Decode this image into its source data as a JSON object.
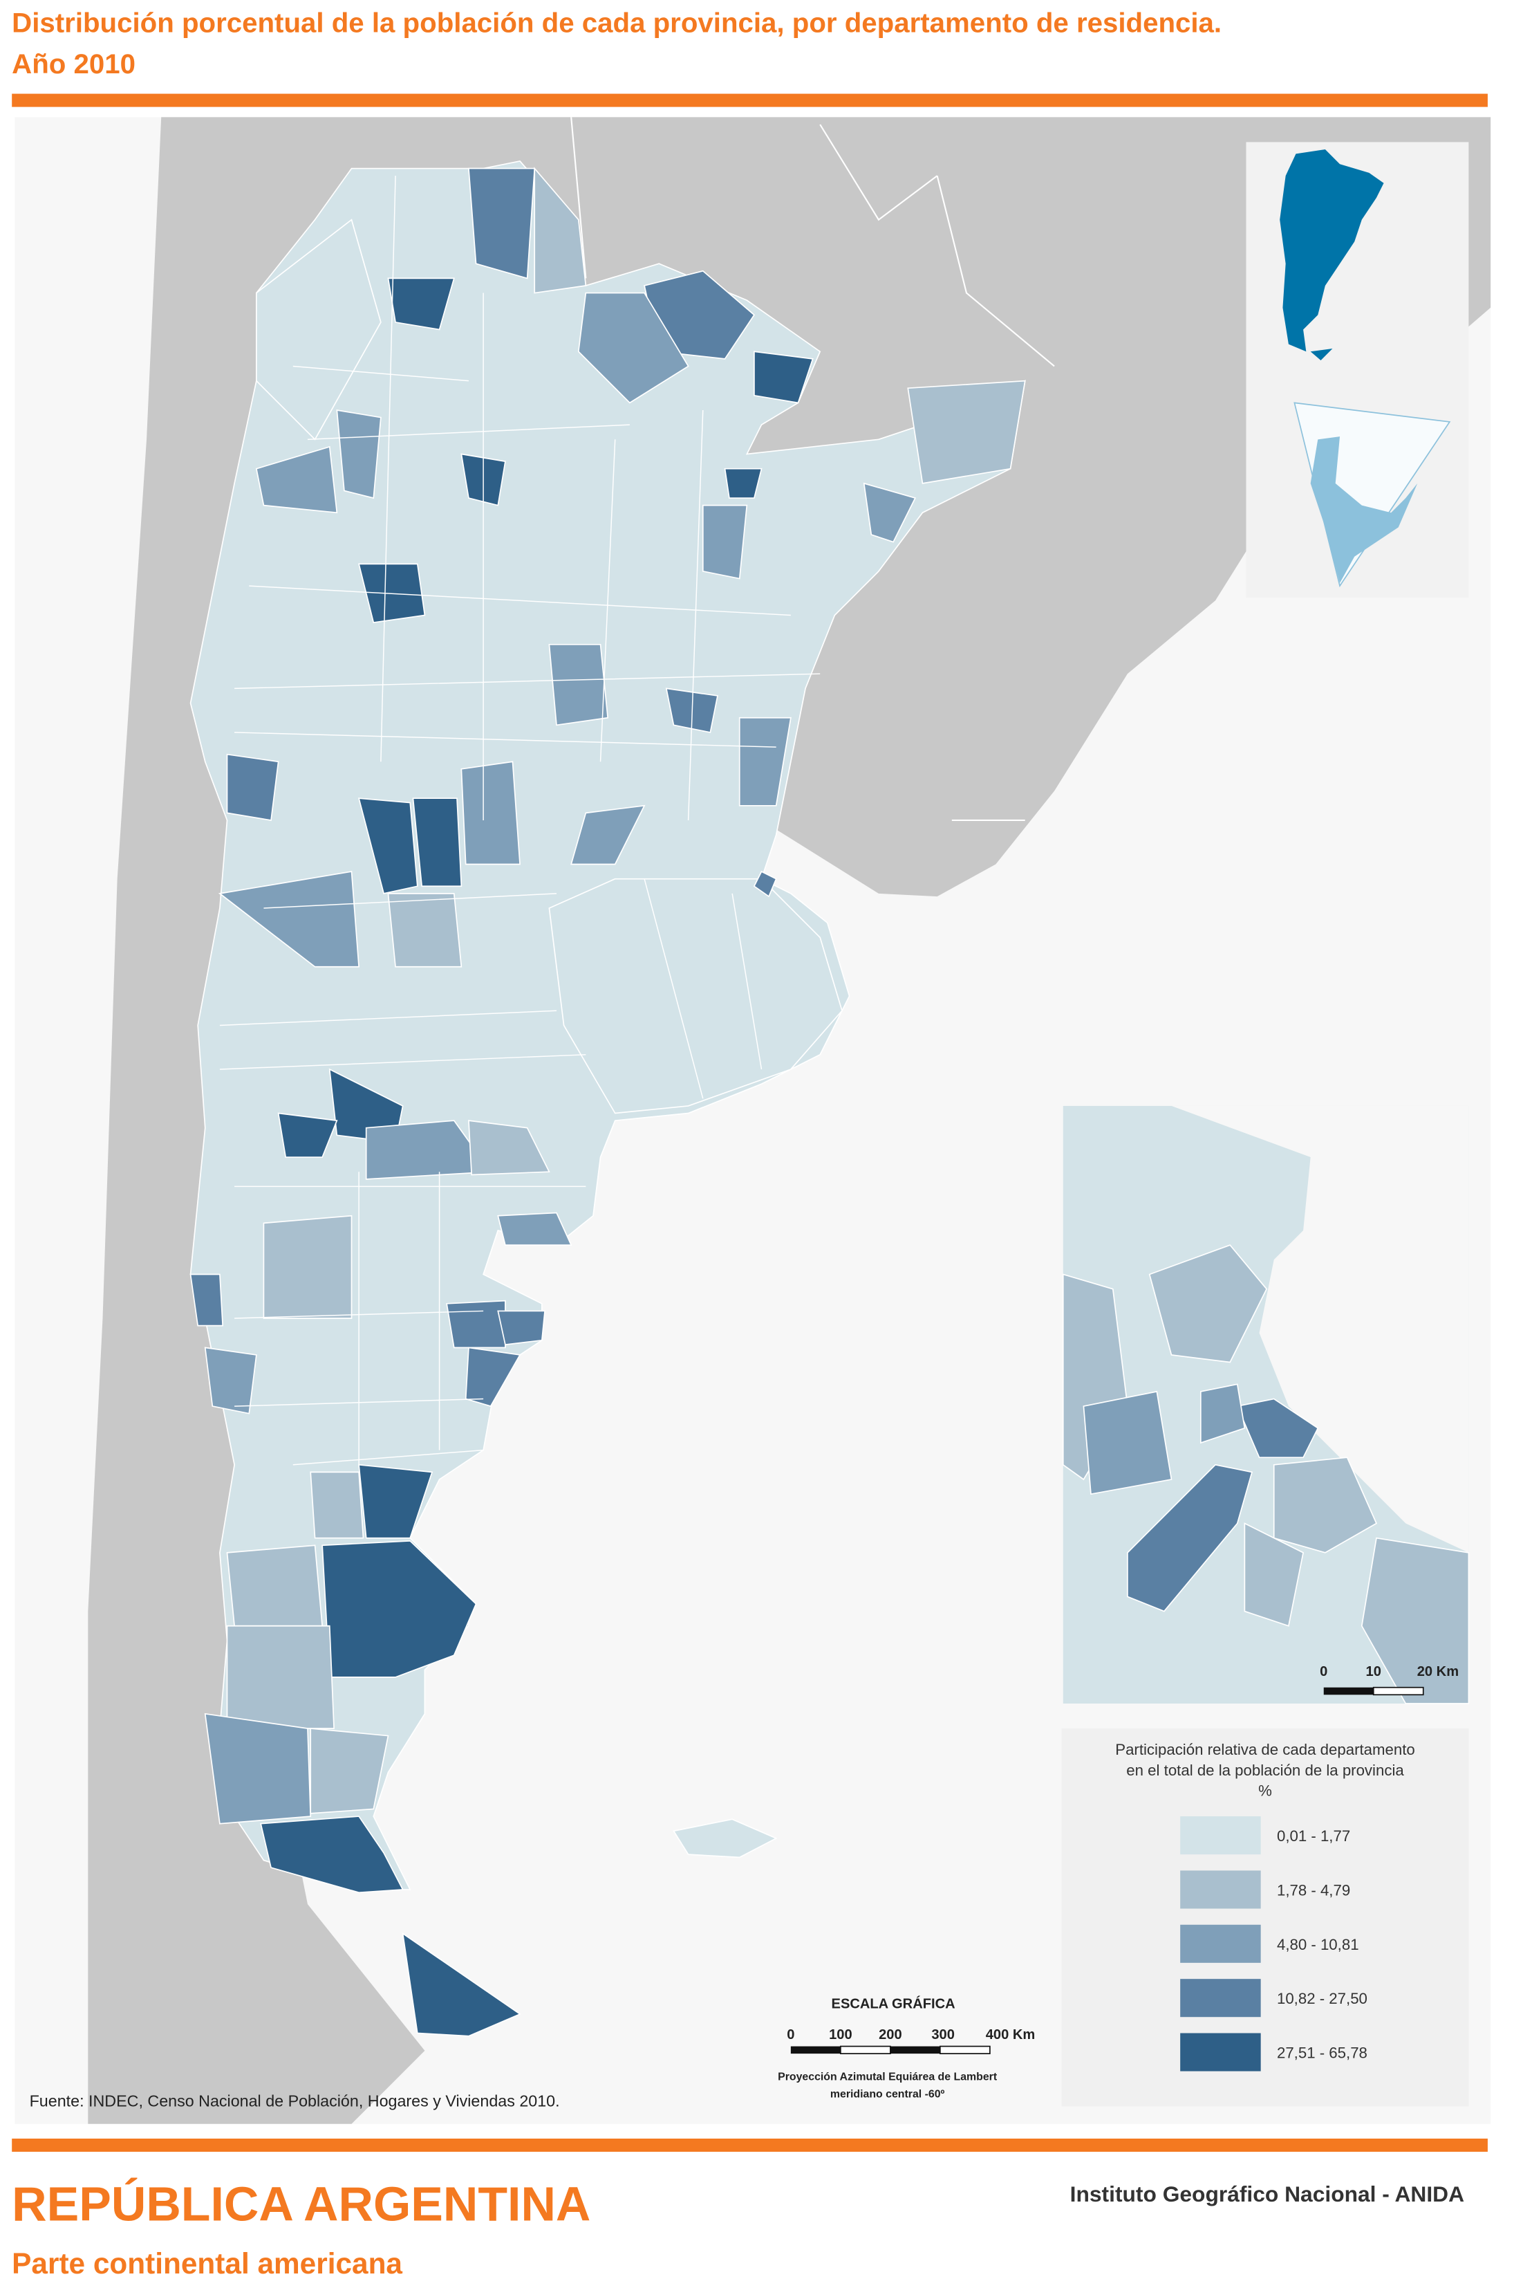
{
  "header": {
    "title_lines": [
      "Distribución porcentual de la población de cada provincia, por departamento de residencia.",
      "Año 2010"
    ]
  },
  "legend": {
    "title_lines": [
      "Participación relativa de cada departamento",
      "en el total de la población de la provincia",
      "%"
    ],
    "classes": [
      {
        "label": "0,01 - 1,77",
        "color": "#d3e3e8"
      },
      {
        "label": "1,78 - 4,79",
        "color": "#a9bfce"
      },
      {
        "label": "4,80 - 10,81",
        "color": "#7f9fb9"
      },
      {
        "label": "10,82 - 27,50",
        "color": "#5a80a3"
      },
      {
        "label": "27,51 - 65,78",
        "color": "#2e5f87"
      }
    ]
  },
  "scale": {
    "title": "ESCALA GRÁFICA",
    "ticks": [
      "0",
      "100",
      "200",
      "300",
      "400 Km"
    ],
    "projection_lines": [
      "Proyección Azimutal Equiárea de Lambert",
      "meridiano central -60º"
    ]
  },
  "inset_scale": {
    "ticks": [
      "0",
      "10",
      "20 Km"
    ]
  },
  "source": "Fuente: INDEC, Censo Nacional de Población, Hogares y Viviendas 2010.",
  "footer": {
    "title": "REPÚBLICA ARGENTINA",
    "subtitle": "Parte continental americana",
    "institute": "Instituto Geográfico Nacional - ANIDA"
  }
}
